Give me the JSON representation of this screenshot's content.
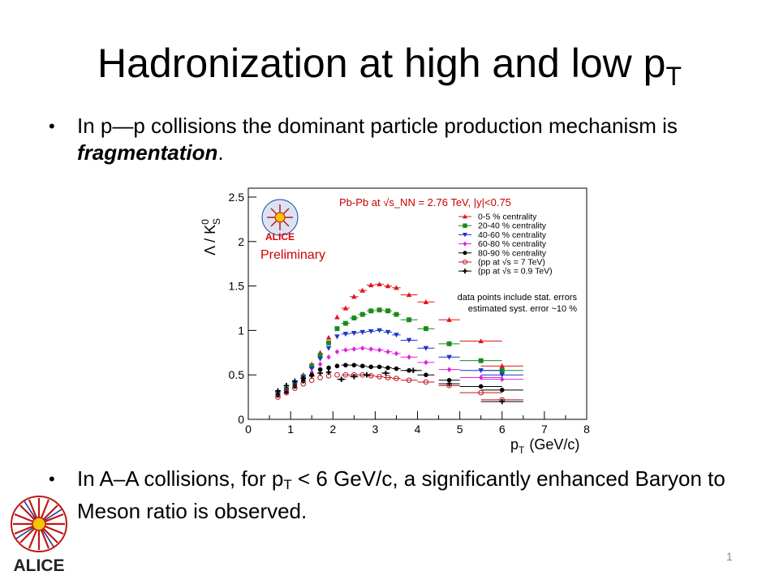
{
  "slide": {
    "title_main": "Hadronization at high and low p",
    "title_sub": "T",
    "bullet1_prefix": "In p—p collisions the dominant particle production mechanism is ",
    "bullet1_em": "fragmentation",
    "bullet1_suffix": ".",
    "bullet2_a": "In A–A collisions, for p",
    "bullet2_sub": "T",
    "bullet2_b": " < 6 GeV/c, a significantly enhanced Baryon to Meson ratio is observed.",
    "bullet_glyph": "•",
    "page_number": "1",
    "logo_text": "ALICE"
  },
  "chart_data": {
    "type": "scatter",
    "ylabel": "Λ / K",
    "ylabel_sup": "0",
    "ylabel_sub": "S",
    "xlabel_main": "p",
    "xlabel_sub": "T",
    "xlabel_unit": "(GeV/c)",
    "xlim": [
      0,
      8
    ],
    "ylim": [
      0,
      2.6
    ],
    "xticks": [
      "0",
      "1",
      "2",
      "3",
      "4",
      "5",
      "6",
      "7",
      "8"
    ],
    "yticks": [
      "0",
      "0.5",
      "1",
      "1.5",
      "2",
      "2.5"
    ],
    "annotation_title": "Pb-Pb at √s_NN = 2.76 TeV, |y|<0.75",
    "annotation_note1": "data points include stat. errors",
    "annotation_note2": "estimated syst. error ~10 %",
    "preliminary_label": "Preliminary",
    "logo_label": "ALICE",
    "legend_position": "top-right",
    "series": [
      {
        "name": "0-5 %     centrality",
        "color": "#e0161b",
        "marker": "triangle-up",
        "x": [
          0.7,
          0.9,
          1.1,
          1.3,
          1.5,
          1.7,
          1.9,
          2.1,
          2.3,
          2.5,
          2.7,
          2.9,
          3.1,
          3.3,
          3.5,
          3.8,
          4.2,
          4.75,
          5.5,
          6.0
        ],
        "y": [
          0.3,
          0.35,
          0.42,
          0.5,
          0.62,
          0.75,
          0.92,
          1.15,
          1.25,
          1.38,
          1.45,
          1.51,
          1.52,
          1.5,
          1.48,
          1.4,
          1.32,
          1.12,
          0.88,
          0.6
        ]
      },
      {
        "name": "20-40 % centrality",
        "color": "#1a8a1a",
        "marker": "square",
        "x": [
          0.7,
          0.9,
          1.1,
          1.3,
          1.5,
          1.7,
          1.9,
          2.1,
          2.3,
          2.5,
          2.7,
          2.9,
          3.1,
          3.3,
          3.5,
          3.8,
          4.2,
          4.75,
          5.5,
          6.0
        ],
        "y": [
          0.29,
          0.34,
          0.41,
          0.48,
          0.6,
          0.72,
          0.86,
          1.02,
          1.08,
          1.14,
          1.18,
          1.22,
          1.23,
          1.22,
          1.18,
          1.12,
          1.02,
          0.85,
          0.66,
          0.55
        ]
      },
      {
        "name": "40-60 % centrality",
        "color": "#1c35c8",
        "marker": "triangle-down",
        "x": [
          0.7,
          0.9,
          1.1,
          1.3,
          1.5,
          1.7,
          1.9,
          2.1,
          2.3,
          2.5,
          2.7,
          2.9,
          3.1,
          3.3,
          3.5,
          3.8,
          4.2,
          4.75,
          5.5,
          6.0
        ],
        "y": [
          0.28,
          0.33,
          0.4,
          0.47,
          0.57,
          0.68,
          0.8,
          0.93,
          0.96,
          0.97,
          0.98,
          0.99,
          1.0,
          0.98,
          0.95,
          0.89,
          0.8,
          0.7,
          0.55,
          0.5
        ]
      },
      {
        "name": "60-80 % centrality",
        "color": "#e020e0",
        "marker": "diamond",
        "x": [
          0.7,
          0.9,
          1.1,
          1.3,
          1.5,
          1.7,
          1.9,
          2.1,
          2.3,
          2.5,
          2.7,
          2.9,
          3.1,
          3.3,
          3.5,
          3.8,
          4.2,
          4.75,
          5.5,
          6.0
        ],
        "y": [
          0.28,
          0.32,
          0.38,
          0.45,
          0.53,
          0.62,
          0.7,
          0.76,
          0.78,
          0.79,
          0.8,
          0.79,
          0.78,
          0.76,
          0.74,
          0.7,
          0.64,
          0.56,
          0.47,
          0.45
        ]
      },
      {
        "name": "80-90 % centrality",
        "color": "#000000",
        "marker": "circle",
        "x": [
          0.7,
          0.9,
          1.1,
          1.3,
          1.5,
          1.7,
          1.9,
          2.1,
          2.3,
          2.5,
          2.7,
          2.9,
          3.1,
          3.3,
          3.5,
          3.8,
          4.2,
          4.75,
          5.5,
          6.0
        ],
        "y": [
          0.27,
          0.31,
          0.37,
          0.43,
          0.5,
          0.56,
          0.58,
          0.6,
          0.61,
          0.61,
          0.6,
          0.59,
          0.59,
          0.58,
          0.57,
          0.55,
          0.5,
          0.44,
          0.37,
          0.33
        ]
      },
      {
        "name": "(pp at √s = 7 TeV)",
        "color": "#c0161b",
        "marker": "open-circle",
        "x": [
          0.7,
          0.9,
          1.1,
          1.3,
          1.5,
          1.7,
          1.9,
          2.1,
          2.3,
          2.5,
          2.7,
          2.9,
          3.1,
          3.3,
          3.5,
          3.8,
          4.2,
          4.75,
          5.5,
          6.0
        ],
        "y": [
          0.25,
          0.3,
          0.35,
          0.4,
          0.44,
          0.47,
          0.49,
          0.5,
          0.5,
          0.5,
          0.5,
          0.49,
          0.48,
          0.47,
          0.46,
          0.44,
          0.42,
          0.38,
          0.3,
          0.22
        ]
      },
      {
        "name": "(pp at √s = 0.9 TeV)",
        "color": "#000000",
        "marker": "plus",
        "x": [
          0.7,
          0.9,
          1.1,
          1.3,
          1.5,
          1.7,
          1.9,
          2.2,
          2.5,
          2.8,
          3.25,
          3.9,
          4.75,
          6.0
        ],
        "y": [
          0.32,
          0.38,
          0.43,
          0.46,
          0.49,
          0.52,
          0.53,
          0.45,
          0.48,
          0.5,
          0.52,
          0.55,
          0.4,
          0.2
        ]
      }
    ]
  }
}
